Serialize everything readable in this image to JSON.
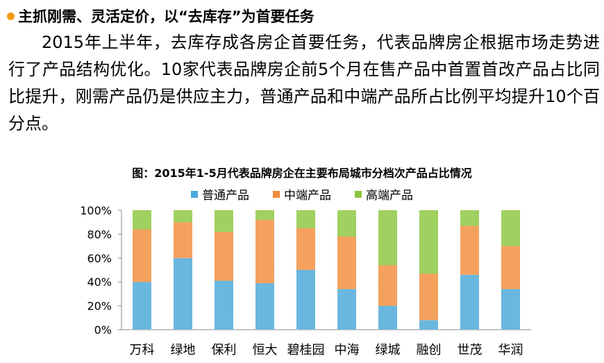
{
  "heading": "主抓刚需、灵活定价，以“去库存”为首要任务",
  "paragraph": "2015年上半年，去库存成各房企首要任务，代表品牌房企根据市场走势进行了产品结构优化。10家代表品牌房企前5个月在售产品中首置首改产品占比同比提升，刚需产品仍是供应主力，普通产品和中端产品所占比例平均提升10个百分点。",
  "colors": {
    "bullet": "#f39c12"
  },
  "chart_data": {
    "type": "bar",
    "stacked": true,
    "title": "图：2015年1-5月代表品牌房企在主要布局城市分档次产品占比情况",
    "categories": [
      "万科",
      "绿地",
      "保利",
      "恒大",
      "碧桂园",
      "中海",
      "绿城",
      "融创",
      "世茂",
      "华润"
    ],
    "series": [
      {
        "name": "普通产品",
        "color": "#4aa8d8",
        "values": [
          40,
          60,
          41,
          39,
          50,
          34,
          20,
          8,
          46,
          34
        ]
      },
      {
        "name": "中端产品",
        "color": "#f28d3c",
        "values": [
          44,
          30,
          41,
          53,
          35,
          44,
          34,
          39,
          41,
          36
        ]
      },
      {
        "name": "高端产品",
        "color": "#8cc63f",
        "values": [
          16,
          10,
          18,
          8,
          15,
          22,
          46,
          53,
          13,
          30
        ]
      }
    ],
    "yticks": [
      "0%",
      "20%",
      "40%",
      "60%",
      "80%",
      "100%"
    ],
    "ylim": [
      0,
      100
    ],
    "legend_position": "top",
    "grid": false
  }
}
